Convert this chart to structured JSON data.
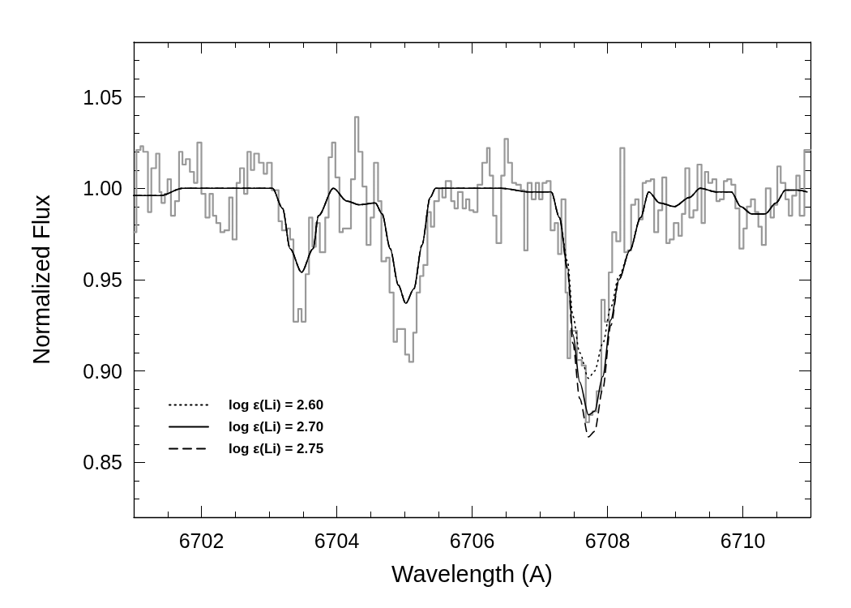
{
  "chart_data": {
    "type": "line",
    "xlabel": "Wavelength (A)",
    "ylabel": "Normalized Flux",
    "xlim": [
      6701,
      6711
    ],
    "ylim": [
      0.82,
      1.08
    ],
    "xticks": [
      6702,
      6704,
      6706,
      6708,
      6710
    ],
    "yticks": [
      0.85,
      {
        "value": 0.9,
        "label": "0.90"
      },
      0.95,
      {
        "value": 1,
        "label": "1.00"
      },
      1.05
    ],
    "grid": false,
    "legend": "bottom left",
    "marker": "none",
    "series": [
      {
        "type": "step",
        "color": "#999999",
        "line_style": "solid",
        "x": [
          6701.0,
          6701.04,
          6701.1,
          6701.14,
          6701.21,
          6701.26,
          6701.33,
          6701.38,
          6701.41,
          6701.46,
          6701.5,
          6701.55,
          6701.61,
          6701.67,
          6701.72,
          6701.77,
          6701.83,
          6701.89,
          6701.94,
          6702.0,
          6702.06,
          6702.12,
          6702.17,
          6702.22,
          6702.28,
          6702.34,
          6702.41,
          6702.46,
          6702.52,
          6702.57,
          6702.63,
          6702.68,
          6702.73,
          6702.78,
          6702.85,
          6702.92,
          6702.97,
          6703.04,
          6703.14,
          6703.19,
          6703.26,
          6703.31,
          6703.36,
          6703.43,
          6703.48,
          6703.54,
          6703.59,
          6703.64,
          6703.69,
          6703.75,
          6703.83,
          6703.88,
          6703.93,
          6703.98,
          6704.04,
          6704.09,
          6704.15,
          6704.21,
          6704.27,
          6704.32,
          6704.38,
          6704.44,
          6704.5,
          6704.55,
          6704.61,
          6704.66,
          6704.73,
          6704.78,
          6704.84,
          6704.89,
          6704.95,
          6705.01,
          6705.07,
          6705.13,
          6705.18,
          6705.23,
          6705.28,
          6705.34,
          6705.39,
          6705.44,
          6705.51,
          6705.56,
          6705.61,
          6705.69,
          6705.74,
          6705.79,
          6705.86,
          6705.91,
          6705.96,
          6706.02,
          6706.08,
          6706.15,
          6706.22,
          6706.26,
          6706.31,
          6706.36,
          6706.43,
          6706.48,
          6706.53,
          6706.59,
          6706.65,
          6706.72,
          6706.77,
          6706.82,
          6706.88,
          6706.94,
          6706.99,
          6707.04,
          6707.1,
          6707.16,
          6707.22,
          6707.27,
          6707.32,
          6707.38,
          6707.41,
          6707.45,
          6707.55,
          6707.62,
          6707.68,
          6707.73,
          6707.78,
          6707.84,
          6707.91,
          6707.96,
          6708.02,
          6708.07,
          6708.13,
          6708.19,
          6708.25,
          6708.3,
          6708.35,
          6708.41,
          6708.46,
          6708.52,
          6708.57,
          6708.64,
          6708.69,
          6708.75,
          6708.81,
          6708.87,
          6708.92,
          6708.98,
          6709.05,
          6709.1,
          6709.15,
          6709.21,
          6709.27,
          6709.33,
          6709.39,
          6709.44,
          6709.49,
          6709.55,
          6709.61,
          6709.66,
          6709.72,
          6709.77,
          6709.83,
          6709.89,
          6709.95,
          6710.01,
          6710.06,
          6710.12,
          6710.18,
          6710.23,
          6710.28,
          6710.34,
          6710.41,
          6710.46,
          6710.51,
          6710.56,
          6710.63,
          6710.68,
          6710.73,
          6710.79,
          6710.84,
          6710.91,
          6711.0
        ],
        "values": [
          0.976,
          1.021,
          1.023,
          1.02,
          0.987,
          1.011,
          1.019,
          0.998,
          0.992,
          0.997,
          1.005,
          0.985,
          0.993,
          1.02,
          1.013,
          1.016,
          1.009,
          1.003,
          1.025,
          0.997,
          0.984,
          0.997,
          0.985,
          0.981,
          0.976,
          0.977,
          0.995,
          0.972,
          1.003,
          1.011,
          0.997,
          1.02,
          1.01,
          1.019,
          1.014,
          1.008,
          1.014,
          0.999,
          0.982,
          0.977,
          0.978,
          0.972,
          0.927,
          0.934,
          0.927,
          0.953,
          0.984,
          0.968,
          0.981,
          0.965,
          0.984,
          1.017,
          1.025,
          1.006,
          0.976,
          0.978,
          0.978,
          1.005,
          1.039,
          1.02,
          1.001,
          0.969,
          0.984,
          1.014,
          0.993,
          0.96,
          0.962,
          0.943,
          0.916,
          0.923,
          0.923,
          0.909,
          0.905,
          0.921,
          0.943,
          0.952,
          0.958,
          0.987,
          0.979,
          0.993,
          1.0,
          0.995,
          1.004,
          0.993,
          0.989,
          0.998,
          0.989,
          0.994,
          0.988,
          0.987,
          1.002,
          1.014,
          1.022,
          1.007,
          0.985,
          0.97,
          1.007,
          1.027,
          1.014,
          1.003,
          1.002,
          0.999,
          0.966,
          1.003,
          0.994,
          1.003,
          0.994,
          1.003,
          1.004,
          0.977,
          0.981,
          0.964,
          0.994,
          0.943,
          0.907,
          0.922,
          0.906,
          0.903,
          0.872,
          0.876,
          0.878,
          0.889,
          0.939,
          0.927,
          0.954,
          0.976,
          0.971,
          1.022,
          0.965,
          0.966,
          0.991,
          0.994,
          0.983,
          1.003,
          1.004,
          1.005,
          0.976,
          0.988,
          1.006,
          0.97,
          0.972,
          0.981,
          0.974,
          0.986,
          1.011,
          0.984,
          0.988,
          1.013,
          0.981,
          1.009,
          1.003,
          1.005,
          0.993,
          0.994,
          1.004,
          1.005,
          1.002,
          0.989,
          0.967,
          0.978,
          0.99,
          0.994,
          0.987,
          0.979,
          0.969,
          1.0,
          0.984,
          0.991,
          1.012,
          1.003,
          0.994,
          0.985,
          0.996,
          1.007,
          0.985,
          1.021,
          1.021
        ]
      },
      {
        "name": "log ε(Li) = 2.60",
        "color": "#000000",
        "line_style": "dotted",
        "x": [
          6701.0,
          6701.4,
          6701.72,
          6703.05,
          6703.2,
          6703.31,
          6703.48,
          6703.65,
          6703.73,
          6703.95,
          6704.15,
          6704.33,
          6704.57,
          6704.67,
          6704.79,
          6704.91,
          6705.02,
          6705.14,
          6705.26,
          6705.38,
          6705.46,
          6706.43,
          6706.85,
          6707.17,
          6707.29,
          6707.41,
          6707.49,
          6707.59,
          6707.72,
          6707.81,
          6707.93,
          6708.05,
          6708.17,
          6708.33,
          6708.49,
          6708.61,
          6708.77,
          6708.99,
          6709.21,
          6709.37,
          6709.61,
          6709.83,
          6709.97,
          6710.13,
          6710.33,
          6710.49,
          6710.63,
          6710.81,
          6710.95
        ],
        "values": [
          0.996,
          0.996,
          1.0,
          1.0,
          0.989,
          0.967,
          0.954,
          0.967,
          0.985,
          1.0,
          0.993,
          0.991,
          0.992,
          0.986,
          0.967,
          0.947,
          0.937,
          0.945,
          0.969,
          0.995,
          1.0,
          1.0,
          0.998,
          0.998,
          0.984,
          0.96,
          0.93,
          0.91,
          0.896,
          0.9,
          0.915,
          0.935,
          0.952,
          0.966,
          0.984,
          0.998,
          0.992,
          0.99,
          0.995,
          1.0,
          0.998,
          0.998,
          0.99,
          0.986,
          0.986,
          0.992,
          0.999,
          0.999,
          0.998
        ]
      },
      {
        "name": "log ε(Li) = 2.70",
        "color": "#000000",
        "line_style": "solid",
        "x": [
          6701.0,
          6701.4,
          6701.72,
          6703.05,
          6703.2,
          6703.31,
          6703.48,
          6703.65,
          6703.73,
          6703.95,
          6704.15,
          6704.33,
          6704.57,
          6704.67,
          6704.79,
          6704.91,
          6705.02,
          6705.14,
          6705.26,
          6705.38,
          6705.46,
          6706.43,
          6706.85,
          6707.17,
          6707.29,
          6707.41,
          6707.49,
          6707.59,
          6707.72,
          6707.81,
          6707.93,
          6708.05,
          6708.17,
          6708.33,
          6708.49,
          6708.61,
          6708.77,
          6708.99,
          6709.21,
          6709.37,
          6709.61,
          6709.83,
          6709.97,
          6710.13,
          6710.33,
          6710.49,
          6710.63,
          6710.81,
          6710.95
        ],
        "values": [
          0.996,
          0.996,
          1.0,
          1.0,
          0.989,
          0.967,
          0.954,
          0.967,
          0.985,
          1.0,
          0.993,
          0.991,
          0.992,
          0.986,
          0.967,
          0.947,
          0.937,
          0.945,
          0.969,
          0.995,
          1.0,
          1.0,
          0.998,
          0.998,
          0.984,
          0.957,
          0.92,
          0.894,
          0.876,
          0.878,
          0.897,
          0.928,
          0.95,
          0.966,
          0.984,
          0.998,
          0.992,
          0.99,
          0.995,
          1.0,
          0.998,
          0.998,
          0.99,
          0.986,
          0.986,
          0.992,
          0.999,
          0.999,
          0.998
        ]
      },
      {
        "name": "log ε(Li) = 2.75",
        "color": "#000000",
        "line_style": "dashed",
        "x": [
          6701.0,
          6701.4,
          6701.72,
          6703.05,
          6703.2,
          6703.31,
          6703.48,
          6703.65,
          6703.73,
          6703.95,
          6704.15,
          6704.33,
          6704.57,
          6704.67,
          6704.79,
          6704.91,
          6705.02,
          6705.14,
          6705.26,
          6705.38,
          6705.46,
          6706.43,
          6706.85,
          6707.17,
          6707.29,
          6707.41,
          6707.49,
          6707.59,
          6707.72,
          6707.81,
          6707.93,
          6708.05,
          6708.17,
          6708.33,
          6708.49,
          6708.61,
          6708.77,
          6708.99,
          6709.21,
          6709.37,
          6709.61,
          6709.83,
          6709.97,
          6710.13,
          6710.33,
          6710.49,
          6710.63,
          6710.81,
          6710.95
        ],
        "values": [
          0.996,
          0.996,
          1.0,
          1.0,
          0.989,
          0.967,
          0.954,
          0.967,
          0.985,
          1.0,
          0.993,
          0.991,
          0.992,
          0.986,
          0.967,
          0.947,
          0.937,
          0.945,
          0.969,
          0.995,
          1.0,
          1.0,
          0.998,
          0.998,
          0.984,
          0.955,
          0.915,
          0.885,
          0.864,
          0.867,
          0.89,
          0.925,
          0.95,
          0.966,
          0.984,
          0.998,
          0.992,
          0.99,
          0.995,
          1.0,
          0.998,
          0.998,
          0.99,
          0.986,
          0.986,
          0.992,
          0.999,
          0.999,
          0.998
        ]
      }
    ]
  }
}
